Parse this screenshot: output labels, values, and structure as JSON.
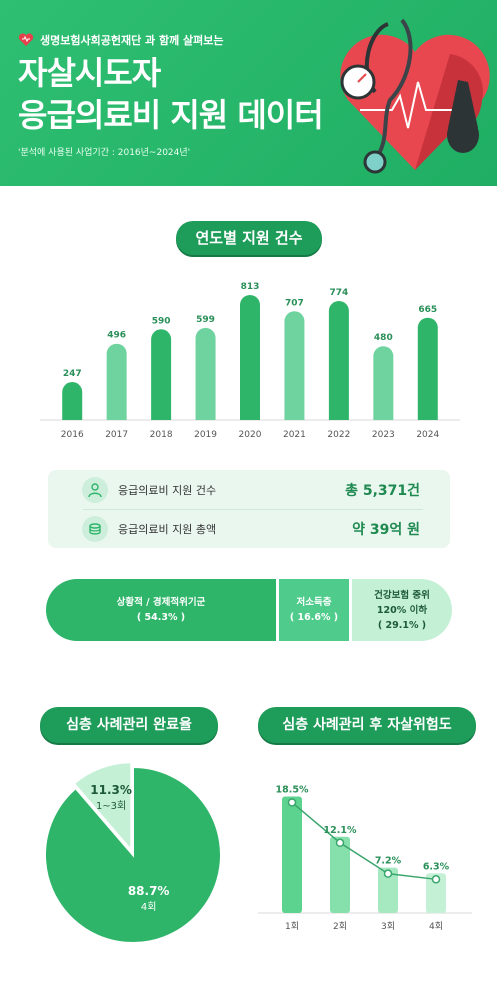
{
  "header": {
    "brand": "생명보험사회공헌재단 과 함께 살펴보는",
    "title_line1": "자살시도자",
    "title_line2": "응급의료비 지원 데이터",
    "period": "'분석에 사용된 사업기간 : 2016년~2024년'"
  },
  "section_titles": {
    "yearly": "연도별 지원 건수",
    "completion": "심층 사례관리 완료율",
    "risk": "심층 사례관리 후 자살위험도"
  },
  "summary": {
    "rows": [
      {
        "icon": "person-doctor-icon",
        "label": "응급의료비 지원 건수",
        "value": "총 5,371건"
      },
      {
        "icon": "coins-icon",
        "label": "응급의료비 지원 총액",
        "value": "약 39억 원"
      }
    ]
  },
  "segments": [
    {
      "label": "상황적 / 경제적위기군",
      "pct_text": "( 54.3% )",
      "value": 54.3,
      "color": "#2fb56a"
    },
    {
      "label": "저소득층",
      "pct_text": "( 16.6% )",
      "value": 16.6,
      "color": "#4fcb8c"
    },
    {
      "label": "건강보험 중위",
      "label2": "120% 이하",
      "pct_text": "( 29.1% )",
      "value": 29.1,
      "color": "#c4f0d6"
    }
  ],
  "colors": {
    "header_green": "#2fbf72",
    "pill_green": "#1e9c5a",
    "bar_dark": "#2fb56a",
    "bar_light": "#6fd3a0",
    "pie_main": "#2fb56a",
    "pie_minor": "#c4f0d6"
  },
  "chart_data": [
    {
      "type": "bar",
      "title": "연도별 지원 건수",
      "categories": [
        "2016",
        "2017",
        "2018",
        "2019",
        "2020",
        "2021",
        "2022",
        "2023",
        "2024"
      ],
      "values": [
        247,
        496,
        590,
        599,
        813,
        707,
        774,
        480,
        665
      ],
      "bar_colors": [
        "#2fb56a",
        "#6fd3a0",
        "#2fb56a",
        "#6fd3a0",
        "#2fb56a",
        "#6fd3a0",
        "#2fb56a",
        "#6fd3a0",
        "#2fb56a"
      ],
      "ylim": [
        0,
        813
      ],
      "grid": false
    },
    {
      "type": "pie",
      "title": "심층 사례관리 완료율",
      "slices": [
        {
          "label": "4회",
          "value": 88.7,
          "value_text": "88.7%",
          "color": "#2fb56a"
        },
        {
          "label": "1~3회",
          "value": 11.3,
          "value_text": "11.3%",
          "color": "#c4f0d6"
        }
      ]
    },
    {
      "type": "bar",
      "title": "심층 사례관리 후 자살위험도",
      "categories": [
        "1회",
        "2회",
        "3회",
        "4회"
      ],
      "values": [
        18.5,
        12.1,
        7.2,
        6.3
      ],
      "value_labels": [
        "18.5%",
        "12.1%",
        "7.2%",
        "6.3%"
      ],
      "bar_colors": [
        "#5cd38f",
        "#86e0ac",
        "#a6e9c1",
        "#c4f0d6"
      ],
      "overlay_line": true,
      "ylim": [
        0,
        20
      ],
      "grid": false
    }
  ]
}
